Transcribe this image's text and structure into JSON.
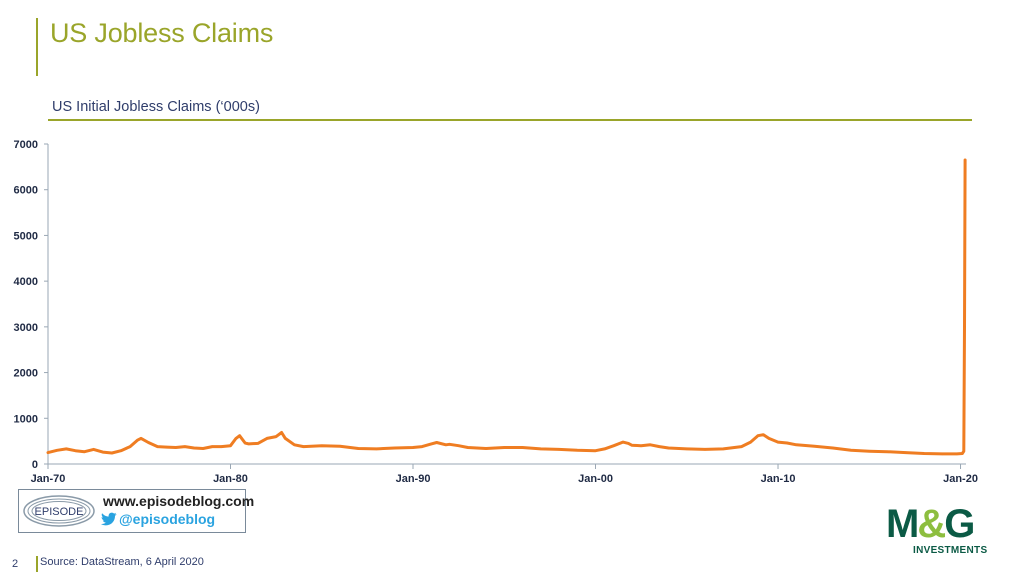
{
  "page_title": "US Jobless Claims",
  "page_number": "2",
  "source": "Source: DataStream, 6 April 2020",
  "brand": {
    "episode_logo_text": "EPISODE",
    "url": "www.episodeblog.com",
    "handle": "@episodeblog",
    "mg_logo_left": "M",
    "mg_logo_amp": "&",
    "mg_logo_right": "G",
    "mg_subtitle": "INVESTMENTS"
  },
  "colors": {
    "accent": "#9aa52a",
    "series": "#ef7d22",
    "axis": "#9aa7b4",
    "mg_green": "#0b5a45",
    "twitter": "#2aa3e0"
  },
  "chart_data": {
    "type": "line",
    "title": "US Initial Jobless Claims (‘000s)",
    "xlabel": "",
    "ylabel": "",
    "ylim": [
      0,
      7000
    ],
    "yticks": [
      0,
      1000,
      2000,
      3000,
      4000,
      5000,
      6000,
      7000
    ],
    "xlim": [
      1970.0,
      2020.3
    ],
    "xticks": [
      {
        "value": 1970,
        "label": "Jan-70"
      },
      {
        "value": 1980,
        "label": "Jan-80"
      },
      {
        "value": 1990,
        "label": "Jan-90"
      },
      {
        "value": 2000,
        "label": "Jan-00"
      },
      {
        "value": 2010,
        "label": "Jan-10"
      },
      {
        "value": 2020,
        "label": "Jan-20"
      }
    ],
    "grid": false,
    "legend": "none",
    "series": [
      {
        "name": "",
        "x": [
          1970.0,
          1970.5,
          1971.0,
          1971.5,
          1972.0,
          1972.5,
          1973.0,
          1973.5,
          1974.0,
          1974.5,
          1974.9,
          1975.1,
          1975.5,
          1976.0,
          1976.5,
          1977.0,
          1977.5,
          1978.0,
          1978.5,
          1979.0,
          1979.5,
          1980.0,
          1980.3,
          1980.5,
          1980.8,
          1981.0,
          1981.5,
          1982.0,
          1982.5,
          1982.8,
          1983.0,
          1983.5,
          1984.0,
          1985.0,
          1986.0,
          1987.0,
          1988.0,
          1989.0,
          1990.0,
          1990.5,
          1991.0,
          1991.3,
          1991.8,
          1992.0,
          1992.5,
          1993.0,
          1994.0,
          1995.0,
          1996.0,
          1997.0,
          1998.0,
          1999.0,
          2000.0,
          2000.5,
          2001.0,
          2001.5,
          2001.8,
          2002.0,
          2002.5,
          2003.0,
          2003.5,
          2004.0,
          2005.0,
          2006.0,
          2007.0,
          2008.0,
          2008.5,
          2008.9,
          2009.2,
          2009.5,
          2010.0,
          2010.5,
          2011.0,
          2012.0,
          2013.0,
          2014.0,
          2015.0,
          2016.0,
          2017.0,
          2018.0,
          2019.0,
          2019.8,
          2020.1,
          2020.18,
          2020.22,
          2020.25
        ],
        "values": [
          250,
          300,
          330,
          290,
          270,
          320,
          260,
          240,
          290,
          380,
          520,
          560,
          470,
          380,
          370,
          360,
          380,
          350,
          340,
          380,
          380,
          400,
          560,
          620,
          460,
          440,
          450,
          560,
          600,
          690,
          560,
          420,
          380,
          400,
          390,
          340,
          330,
          350,
          360,
          380,
          440,
          470,
          420,
          430,
          400,
          360,
          340,
          360,
          360,
          330,
          320,
          300,
          290,
          330,
          400,
          480,
          450,
          410,
          400,
          420,
          380,
          350,
          330,
          320,
          330,
          380,
          480,
          620,
          640,
          560,
          480,
          460,
          420,
          390,
          350,
          300,
          280,
          270,
          250,
          230,
          220,
          220,
          230,
          280,
          3000,
          6650
        ]
      }
    ]
  }
}
